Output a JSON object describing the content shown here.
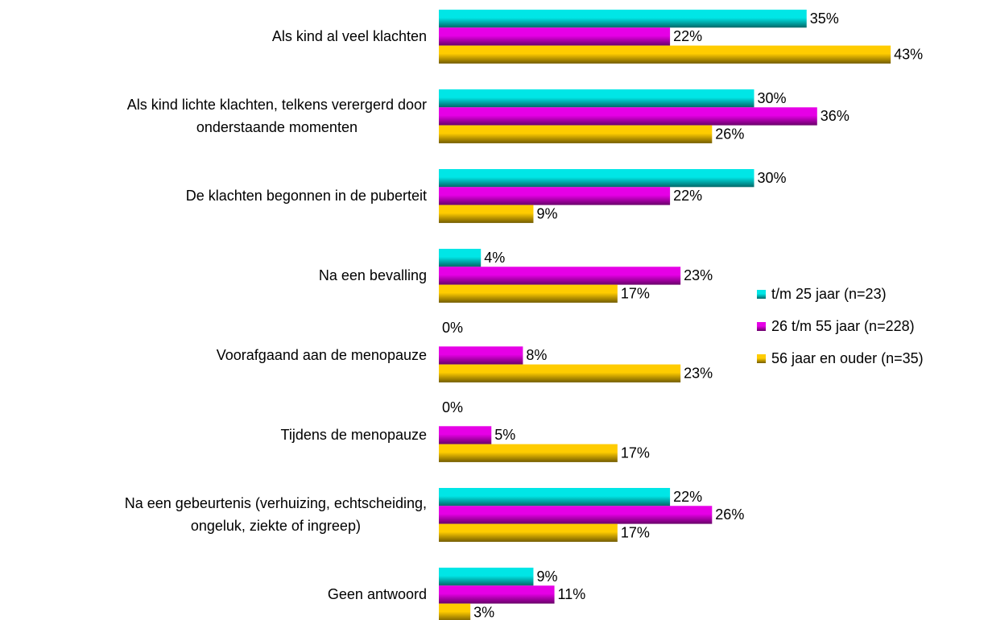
{
  "chart_data": {
    "type": "hbar",
    "categories": [
      "Als kind al veel klachten",
      "Als kind lichte klachten, telkens verergerd door\nonderstaande momenten",
      "De klachten begonnen in de puberteit",
      "Na een bevalling",
      "Voorafgaand aan de menopauze",
      "Tijdens de menopauze",
      "Na een gebeurtenis (verhuizing, echtscheiding,\nongeluk, ziekte of ingreep)",
      "Geen antwoord"
    ],
    "series": [
      {
        "name": "t/m 25 jaar (n=23)",
        "color": "#00e6e6",
        "values": [
          35,
          30,
          30,
          4,
          0,
          0,
          22,
          9
        ],
        "value_labels": [
          "35%",
          "30%",
          "30%",
          "4%",
          "0%",
          "0%",
          "22%",
          "9%"
        ]
      },
      {
        "name": "26 t/m 55 jaar (n=228)",
        "color": "#e600e6",
        "values": [
          22,
          36,
          22,
          23,
          8,
          5,
          26,
          11
        ],
        "value_labels": [
          "22%",
          "36%",
          "22%",
          "23%",
          "8%",
          "5%",
          "26%",
          "11%"
        ]
      },
      {
        "name": "56 jaar en ouder (n=35)",
        "color": "#ffcc00",
        "values": [
          43,
          26,
          9,
          17,
          23,
          17,
          17,
          3
        ],
        "value_labels": [
          "43%",
          "26%",
          "9%",
          "17%",
          "23%",
          "17%",
          "17%",
          "3%"
        ]
      }
    ],
    "legend": "right"
  }
}
